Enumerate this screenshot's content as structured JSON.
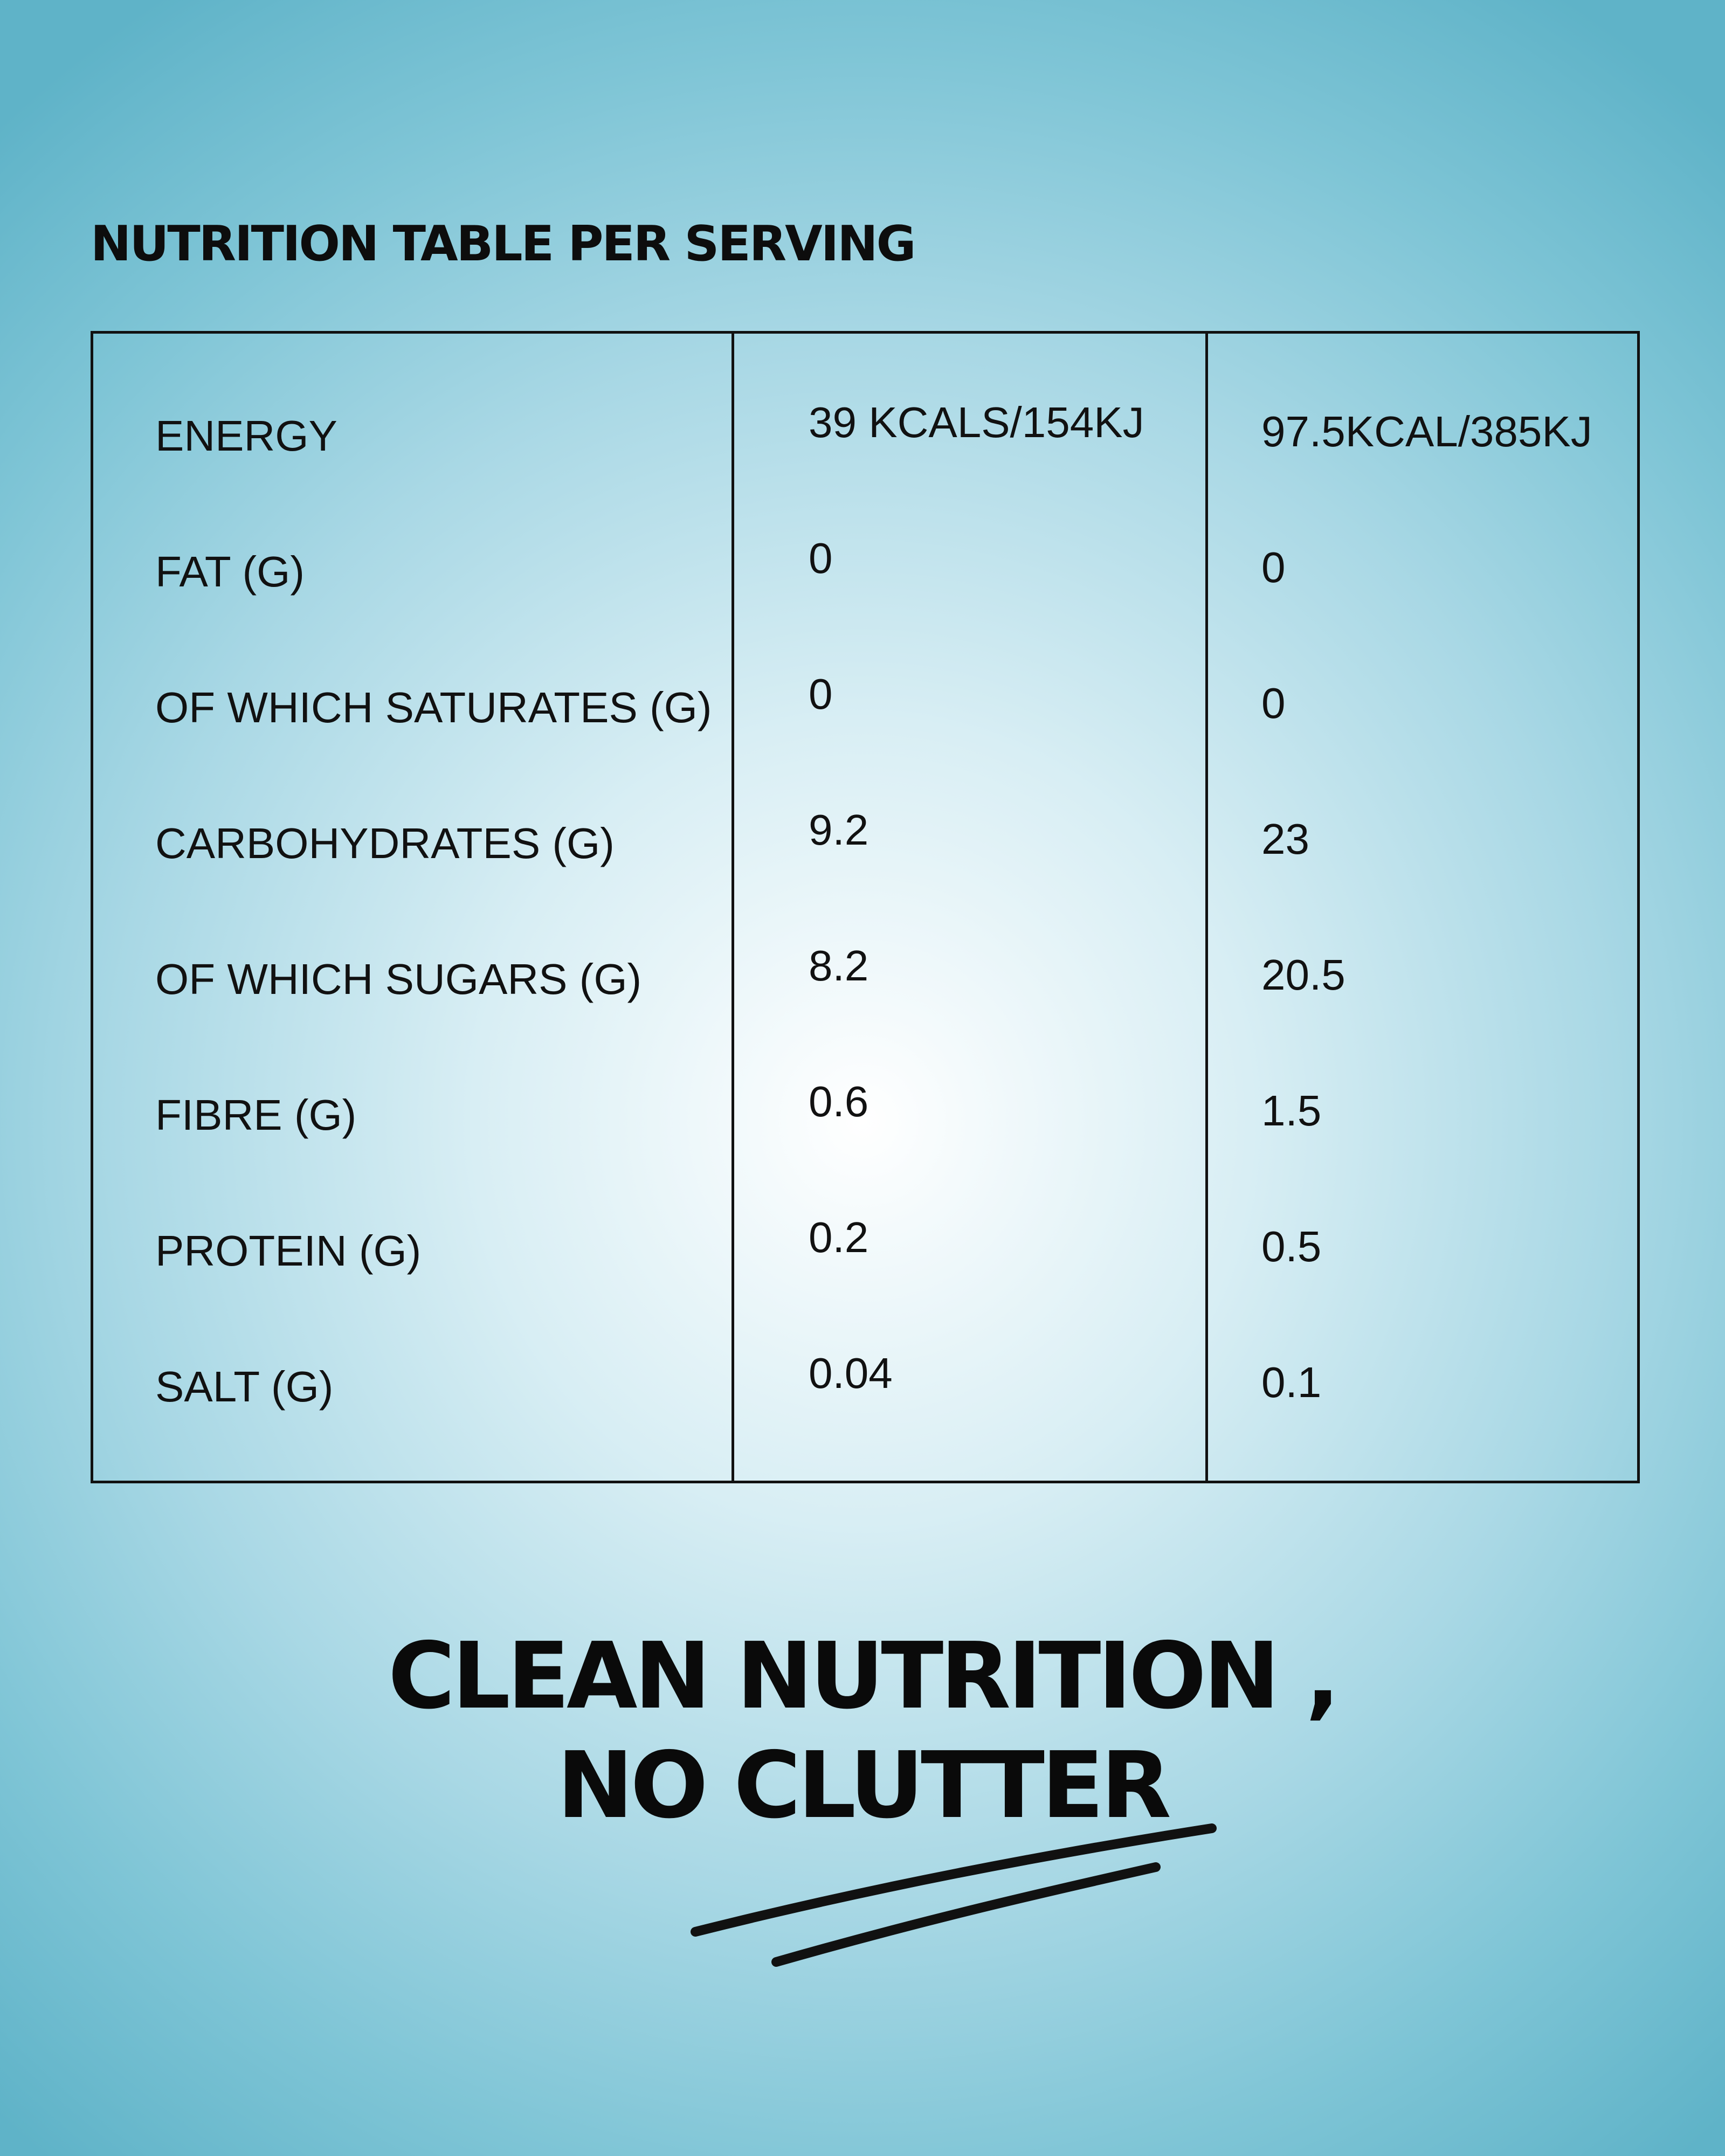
{
  "heading": "NUTRITION TABLE PER SERVING",
  "table": {
    "rows": [
      {
        "label": "ENERGY",
        "per_serving": "39 KCALS/154KJ",
        "per_100": "97.5KCAL/385KJ"
      },
      {
        "label": "FAT (G)",
        "per_serving": "0",
        "per_100": "0"
      },
      {
        "label": "OF WHICH SATURATES (G)",
        "per_serving": "0",
        "per_100": "0"
      },
      {
        "label": "CARBOHYDRATES (G)",
        "per_serving": "9.2",
        "per_100": "23"
      },
      {
        "label": "OF WHICH SUGARS (G)",
        "per_serving": "8.2",
        "per_100": "20.5"
      },
      {
        "label": "FIBRE (G)",
        "per_serving": "0.6",
        "per_100": "1.5"
      },
      {
        "label": "PROTEIN (G)",
        "per_serving": "0.2",
        "per_100": "0.5"
      },
      {
        "label": "SALT (G)",
        "per_serving": "0.04",
        "per_100": "0.1"
      }
    ]
  },
  "tagline": {
    "line1": "CLEAN NUTRITION ,",
    "line2": "NO CLUTTER"
  },
  "colors": {
    "background_center": "#ffffff",
    "background_edge": "#5fb3c8",
    "ink": "#111111"
  }
}
